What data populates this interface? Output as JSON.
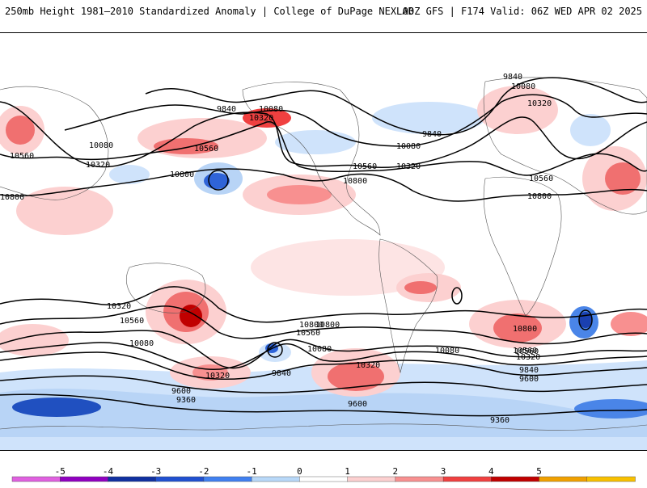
{
  "header": {
    "title": "250mb Height 1981–2010 Standardized Anomaly | College of DuPage NEXLAB",
    "run_info": "00Z GFS | F174 Valid: 06Z WED APR 02 2025"
  },
  "map": {
    "contour_labels": [
      "9840",
      "10080",
      "10320",
      "10560",
      "10800",
      "10560",
      "10320",
      "10080",
      "9840",
      "10800",
      "10080",
      "10560",
      "10320",
      "10800",
      "10320",
      "10560",
      "10800",
      "9840",
      "10080",
      "10320",
      "10560",
      "10800",
      "10560",
      "10080",
      "10800",
      "10560",
      "10080",
      "10320",
      "9840",
      "10800",
      "10560",
      "10320",
      "10080",
      "9840",
      "9600",
      "9600",
      "9360",
      "9600",
      "9360",
      "10320"
    ]
  },
  "legend": {
    "ticks": [
      "-5",
      "-4",
      "-3",
      "-2",
      "-1",
      "0",
      "1",
      "2",
      "3",
      "4",
      "5"
    ],
    "colors": [
      "#e060e0",
      "#9000c0",
      "#1030a0",
      "#2050d0",
      "#4080f0",
      "#b8d8f8",
      "#ffffff",
      "#fcd0d0",
      "#f89090",
      "#f04040",
      "#c00000",
      "#f0a000",
      "#f8c000"
    ]
  }
}
